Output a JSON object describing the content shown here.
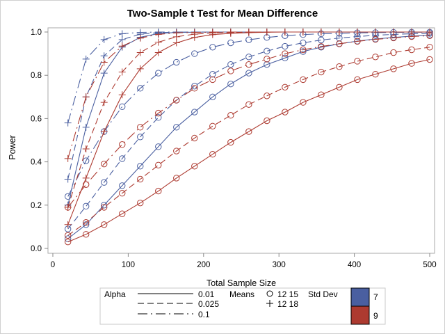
{
  "chart_data": {
    "type": "line",
    "title": "Two-Sample t Test for Mean Difference",
    "xlabel": "Total Sample Size",
    "ylabel": "Power",
    "xlim": [
      0,
      500
    ],
    "ylim": [
      0,
      1.0
    ],
    "x_ticks": [
      "0",
      "100",
      "200",
      "300",
      "400",
      "500"
    ],
    "y_ticks": [
      "0.0",
      "0.2",
      "0.4",
      "0.6",
      "0.8",
      "1.0"
    ],
    "grid": false,
    "x": [
      20,
      44,
      68,
      92,
      116,
      140,
      164,
      188,
      212,
      236,
      260,
      284,
      308,
      332,
      356,
      380,
      404,
      428,
      452,
      476,
      500
    ],
    "legend": {
      "position": "bottom",
      "alpha_title": "Alpha",
      "alpha_entries": [
        {
          "label": "0.01",
          "style": "solid"
        },
        {
          "label": "0.025",
          "style": "dashed"
        },
        {
          "label": "0.1",
          "style": "dashdot"
        }
      ],
      "means_title": "Means",
      "means_entries": [
        {
          "label": "12 15",
          "marker": "circle"
        },
        {
          "label": "12 18",
          "marker": "plus"
        }
      ],
      "sd_title": "Std Dev",
      "sd_entries": [
        {
          "label": "7",
          "color": "#4a5fa0"
        },
        {
          "label": "9",
          "color": "#ad3a30"
        }
      ]
    },
    "series": [
      {
        "name": "alpha 0.01, means 12 15, sd 7",
        "alpha": "0.01",
        "marker": "circle",
        "sd": "7",
        "values": [
          0.045,
          0.11,
          0.2,
          0.29,
          0.38,
          0.47,
          0.56,
          0.63,
          0.7,
          0.76,
          0.81,
          0.85,
          0.88,
          0.91,
          0.93,
          0.945,
          0.958,
          0.968,
          0.975,
          0.981,
          0.986
        ]
      },
      {
        "name": "alpha 0.025, means 12 15, sd 7",
        "alpha": "0.025",
        "marker": "circle",
        "sd": "7",
        "values": [
          0.09,
          0.195,
          0.305,
          0.415,
          0.515,
          0.605,
          0.685,
          0.75,
          0.805,
          0.85,
          0.885,
          0.912,
          0.934,
          0.95,
          0.963,
          0.972,
          0.979,
          0.985,
          0.989,
          0.992,
          0.994
        ]
      },
      {
        "name": "alpha 0.1, means 12 15, sd 7",
        "alpha": "0.1",
        "marker": "circle",
        "sd": "7",
        "values": [
          0.24,
          0.405,
          0.54,
          0.655,
          0.74,
          0.81,
          0.86,
          0.9,
          0.93,
          0.95,
          0.964,
          0.975,
          0.983,
          0.988,
          0.992,
          0.994,
          0.996,
          0.997,
          0.998,
          0.999,
          0.999
        ]
      },
      {
        "name": "alpha 0.01, means 12 15, sd 9",
        "alpha": "0.01",
        "marker": "circle",
        "sd": "9",
        "values": [
          0.03,
          0.065,
          0.11,
          0.16,
          0.21,
          0.265,
          0.325,
          0.38,
          0.435,
          0.49,
          0.54,
          0.59,
          0.63,
          0.675,
          0.71,
          0.745,
          0.78,
          0.805,
          0.83,
          0.855,
          0.873
        ]
      },
      {
        "name": "alpha 0.025, means 12 15, sd 9",
        "alpha": "0.025",
        "marker": "circle",
        "sd": "9",
        "values": [
          0.06,
          0.12,
          0.19,
          0.255,
          0.32,
          0.385,
          0.45,
          0.51,
          0.565,
          0.615,
          0.665,
          0.705,
          0.745,
          0.78,
          0.815,
          0.84,
          0.865,
          0.885,
          0.905,
          0.918,
          0.93
        ]
      },
      {
        "name": "alpha 0.1, means 12 15, sd 9",
        "alpha": "0.1",
        "marker": "circle",
        "sd": "9",
        "values": [
          0.19,
          0.295,
          0.39,
          0.48,
          0.56,
          0.625,
          0.685,
          0.74,
          0.78,
          0.82,
          0.85,
          0.875,
          0.9,
          0.918,
          0.933,
          0.946,
          0.957,
          0.966,
          0.973,
          0.979,
          0.983
        ]
      },
      {
        "name": "alpha 0.01, means 12 18, sd 7",
        "alpha": "0.01",
        "marker": "plus",
        "sd": "7",
        "values": [
          0.2,
          0.56,
          0.81,
          0.93,
          0.976,
          0.993,
          0.998,
          0.999,
          1.0,
          1.0,
          1.0,
          1.0,
          1.0,
          1.0,
          1.0,
          1.0,
          1.0,
          1.0,
          1.0,
          1.0,
          1.0
        ]
      },
      {
        "name": "alpha 0.025, means 12 18, sd 7",
        "alpha": "0.025",
        "marker": "plus",
        "sd": "7",
        "values": [
          0.32,
          0.7,
          0.89,
          0.965,
          0.99,
          0.997,
          0.999,
          1.0,
          1.0,
          1.0,
          1.0,
          1.0,
          1.0,
          1.0,
          1.0,
          1.0,
          1.0,
          1.0,
          1.0,
          1.0,
          1.0
        ]
      },
      {
        "name": "alpha 0.1, means 12 18, sd 7",
        "alpha": "0.1",
        "marker": "plus",
        "sd": "7",
        "values": [
          0.58,
          0.875,
          0.965,
          0.992,
          0.998,
          1.0,
          1.0,
          1.0,
          1.0,
          1.0,
          1.0,
          1.0,
          1.0,
          1.0,
          1.0,
          1.0,
          1.0,
          1.0,
          1.0,
          1.0,
          1.0
        ]
      },
      {
        "name": "alpha 0.01, means 12 18, sd 9",
        "alpha": "0.01",
        "marker": "plus",
        "sd": "9",
        "values": [
          0.11,
          0.325,
          0.54,
          0.71,
          0.83,
          0.905,
          0.95,
          0.975,
          0.988,
          0.994,
          0.997,
          0.999,
          1.0,
          1.0,
          1.0,
          1.0,
          1.0,
          1.0,
          1.0,
          1.0,
          1.0
        ]
      },
      {
        "name": "alpha 0.025, means 12 18, sd 9",
        "alpha": "0.025",
        "marker": "plus",
        "sd": "9",
        "values": [
          0.19,
          0.46,
          0.675,
          0.815,
          0.905,
          0.953,
          0.978,
          0.99,
          0.996,
          0.998,
          0.999,
          1.0,
          1.0,
          1.0,
          1.0,
          1.0,
          1.0,
          1.0,
          1.0,
          1.0,
          1.0
        ]
      },
      {
        "name": "alpha 0.1, means 12 18, sd 9",
        "alpha": "0.1",
        "marker": "plus",
        "sd": "9",
        "values": [
          0.415,
          0.7,
          0.86,
          0.935,
          0.972,
          0.989,
          0.996,
          0.998,
          0.999,
          1.0,
          1.0,
          1.0,
          1.0,
          1.0,
          1.0,
          1.0,
          1.0,
          1.0,
          1.0,
          1.0,
          1.0
        ]
      }
    ]
  }
}
